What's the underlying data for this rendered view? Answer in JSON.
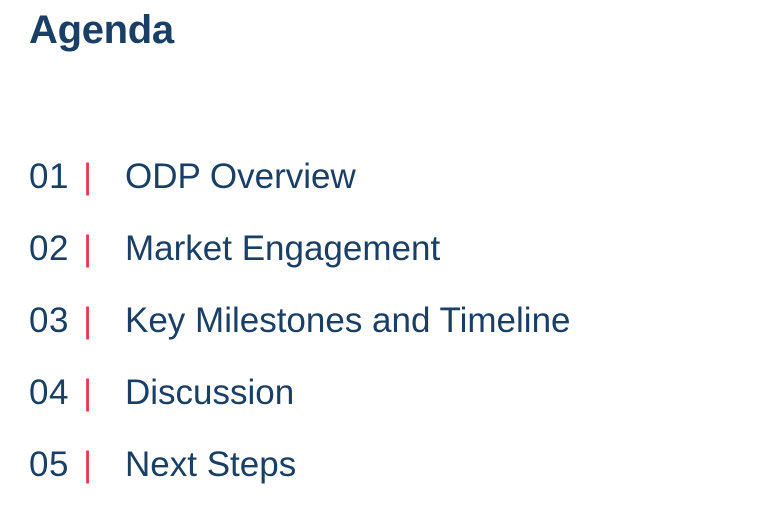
{
  "title": "Agenda",
  "separator": "|",
  "colors": {
    "text": "#1a3f66",
    "separator": "#e0404e",
    "background": "#ffffff"
  },
  "items": [
    {
      "number": "01",
      "label": "ODP Overview"
    },
    {
      "number": "02",
      "label": "Market Engagement"
    },
    {
      "number": "03",
      "label": "Key Milestones and Timeline"
    },
    {
      "number": "04",
      "label": "Discussion"
    },
    {
      "number": "05",
      "label": "Next Steps"
    }
  ]
}
